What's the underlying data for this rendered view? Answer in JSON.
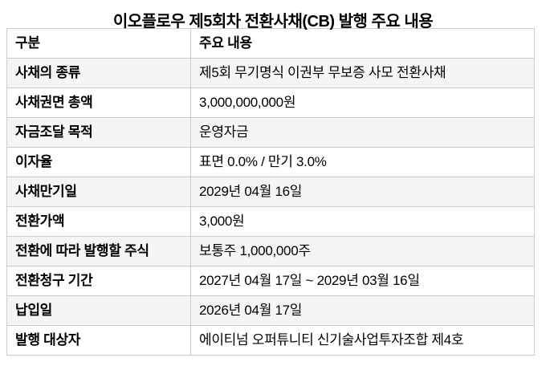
{
  "title": "이오플로우 제5회차 전환사채(CB) 발행 주요 내용",
  "colors": {
    "background": "#ffffff",
    "text": "#000000",
    "border": "#cccccc",
    "row_alt_bg": "#f5f5f5"
  },
  "table": {
    "columns": [
      "구분",
      "주요 내용"
    ],
    "rows": [
      {
        "label": "사채의 종류",
        "value": "제5회 무기명식 이권부 무보증 사모 전환사채"
      },
      {
        "label": "사채권면 총액",
        "value": "3,000,000,000원"
      },
      {
        "label": "자금조달 목적",
        "value": "운영자금"
      },
      {
        "label": "이자율",
        "value": "표면 0.0% / 만기 3.0%"
      },
      {
        "label": "사채만기일",
        "value": "2029년 04월 16일"
      },
      {
        "label": "전환가액",
        "value": "3,000원"
      },
      {
        "label": "전환에 따라 발행할 주식",
        "value": "보통주 1,000,000주"
      },
      {
        "label": "전환청구 기간",
        "value": "2027년 04월 17일 ~ 2029년 03월 16일"
      },
      {
        "label": "납입일",
        "value": "2026년 04월 17일"
      },
      {
        "label": "발행 대상자",
        "value": "에이티넘 오퍼튜니티 신기술사업투자조합 제4호"
      }
    ]
  },
  "chart_data": {
    "type": "table",
    "title": "이오플로우 제5회차 전환사채(CB) 발행 주요 내용",
    "columns": [
      "구분",
      "주요 내용"
    ],
    "rows": [
      [
        "사채의 종류",
        "제5회 무기명식 이권부 무보증 사모 전환사채"
      ],
      [
        "사채권면 총액",
        "3,000,000,000원"
      ],
      [
        "자금조달 목적",
        "운영자금"
      ],
      [
        "이자율",
        "표면 0.0% / 만기 3.0%"
      ],
      [
        "사채만기일",
        "2029년 04월 16일"
      ],
      [
        "전환가액",
        "3,000원"
      ],
      [
        "전환에 따라 발행할 주식",
        "보통주 1,000,000주"
      ],
      [
        "전환청구 기간",
        "2027년 04월 17일 ~ 2029년 03월 16일"
      ],
      [
        "납입일",
        "2026년 04월 17일"
      ],
      [
        "발행 대상자",
        "에이티넘 오퍼튜니티 신기술사업투자조합 제4호"
      ]
    ],
    "layout": {
      "header_row": true,
      "alternating_row_shading": true,
      "bold_label_column": true
    }
  }
}
